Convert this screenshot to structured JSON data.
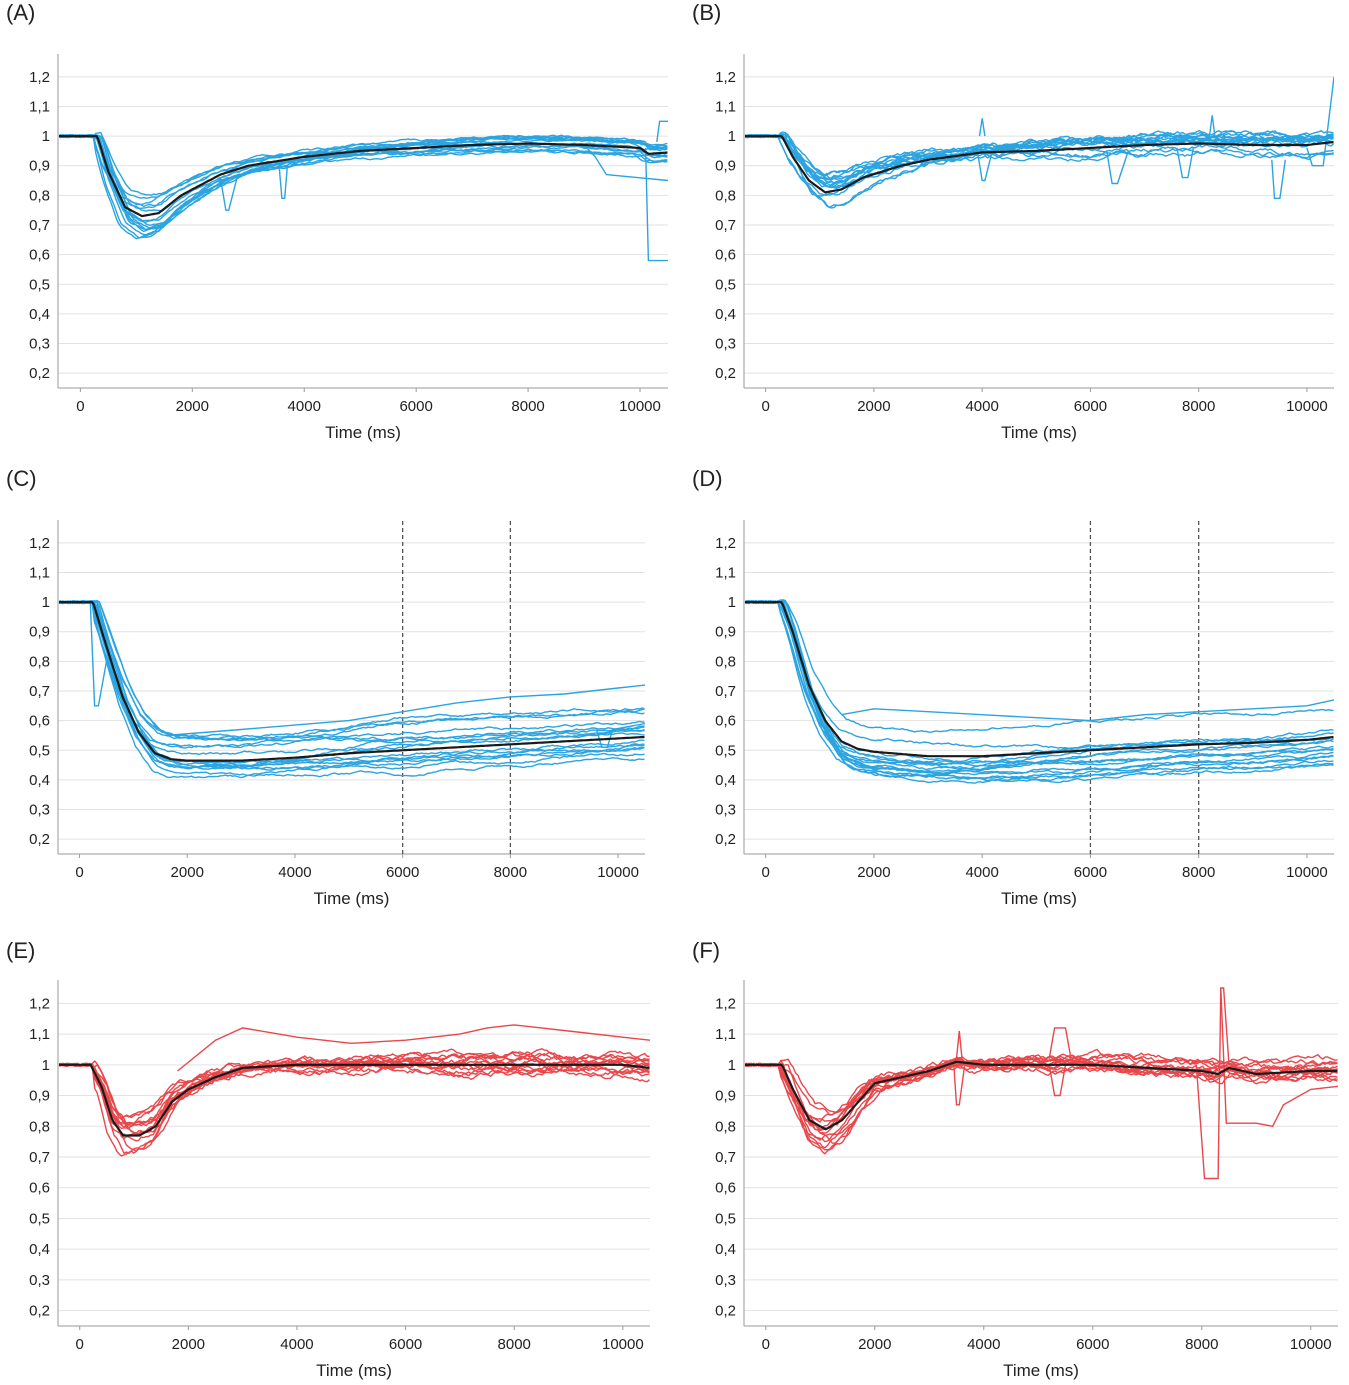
{
  "colors": {
    "blue": "#2ba4e0",
    "red": "#e8474b",
    "mean": "#1a1a1a",
    "grid": "#e2e2e2",
    "axis": "#9a9a9a",
    "dash": "#555555"
  },
  "panels": [
    {
      "letter": "(A)",
      "xlabel": "Time (ms)",
      "color": "blue",
      "guides": []
    },
    {
      "letter": "(B)",
      "xlabel": "Time (ms)",
      "color": "blue",
      "guides": []
    },
    {
      "letter": "(C)",
      "xlabel": "Time (ms)",
      "color": "blue",
      "guides": [
        6000,
        8000
      ]
    },
    {
      "letter": "(D)",
      "xlabel": "Time (ms)",
      "color": "blue",
      "guides": [
        6000,
        8000
      ]
    },
    {
      "letter": "(E)",
      "xlabel": "Time (ms)",
      "color": "red",
      "guides": []
    },
    {
      "letter": "(F)",
      "xlabel": "Time (ms)",
      "color": "red",
      "guides": []
    }
  ],
  "chart_data": [
    {
      "type": "line",
      "panel": "(A)",
      "xlabel": "Time (ms)",
      "ylabel": "",
      "xlim": [
        -400,
        10500
      ],
      "ylim": [
        0.15,
        1.25
      ],
      "xticks": [
        "0",
        "2000",
        "4000",
        "6000",
        "8000",
        "10000"
      ],
      "yticks": [
        "0,2",
        "0,3",
        "0,4",
        "0,5",
        "0,6",
        "0,7",
        "0,8",
        "0,9",
        "1",
        "1,1",
        "1,2"
      ],
      "guides": [],
      "mean": {
        "x": [
          -400,
          300,
          500,
          800,
          1100,
          1400,
          1800,
          2500,
          3000,
          4000,
          5000,
          6000,
          7000,
          8000,
          9000,
          10000,
          10150,
          10500
        ],
        "y": [
          1.0,
          1.0,
          0.88,
          0.76,
          0.73,
          0.74,
          0.8,
          0.87,
          0.9,
          0.93,
          0.95,
          0.96,
          0.97,
          0.975,
          0.97,
          0.96,
          0.94,
          0.945
        ]
      },
      "trace_count": 16,
      "trace_min_range": [
        0.6,
        0.83
      ],
      "outliers": [
        {
          "x": [
            2500,
            2600,
            2650,
            2800
          ],
          "y": [
            0.86,
            0.75,
            0.75,
            0.86
          ]
        },
        {
          "x": [
            3550,
            3600,
            3650,
            3700
          ],
          "y": [
            0.9,
            0.79,
            0.79,
            0.9
          ]
        },
        {
          "x": [
            10100,
            10150,
            10200,
            10500
          ],
          "y": [
            0.96,
            0.58,
            0.58,
            0.58
          ]
        },
        {
          "x": [
            9000,
            9200,
            9400,
            10500
          ],
          "y": [
            0.97,
            0.93,
            0.87,
            0.85
          ]
        },
        {
          "x": [
            10300,
            10350,
            10500
          ],
          "y": [
            0.98,
            1.05,
            1.05
          ]
        }
      ]
    },
    {
      "type": "line",
      "panel": "(B)",
      "xlabel": "Time (ms)",
      "ylabel": "",
      "xlim": [
        -400,
        10500
      ],
      "ylim": [
        0.15,
        1.25
      ],
      "xticks": [
        "0",
        "2000",
        "4000",
        "6000",
        "8000",
        "10000"
      ],
      "yticks": [
        "0,2",
        "0,3",
        "0,4",
        "0,5",
        "0,6",
        "0,7",
        "0,8",
        "0,9",
        "1",
        "1,1",
        "1,2"
      ],
      "guides": [],
      "mean": {
        "x": [
          -400,
          300,
          500,
          800,
          1100,
          1400,
          1800,
          2500,
          3000,
          4000,
          5000,
          6000,
          7000,
          8000,
          9000,
          10000,
          10500
        ],
        "y": [
          1.0,
          1.0,
          0.93,
          0.85,
          0.81,
          0.82,
          0.86,
          0.9,
          0.92,
          0.945,
          0.95,
          0.96,
          0.97,
          0.975,
          0.97,
          0.97,
          0.98
        ]
      },
      "trace_count": 16,
      "trace_min_range": [
        0.7,
        0.93
      ],
      "outliers": [
        {
          "x": [
            3900,
            4000,
            4050,
            4200
          ],
          "y": [
            0.96,
            0.85,
            0.85,
            0.96
          ]
        },
        {
          "x": [
            6300,
            6400,
            6500,
            6700
          ],
          "y": [
            0.95,
            0.84,
            0.84,
            0.95
          ]
        },
        {
          "x": [
            7600,
            7700,
            7800,
            7900
          ],
          "y": [
            0.96,
            0.86,
            0.86,
            0.96
          ]
        },
        {
          "x": [
            9350,
            9400,
            9500,
            9600
          ],
          "y": [
            0.92,
            0.79,
            0.79,
            0.92
          ]
        },
        {
          "x": [
            10000,
            10100,
            10300,
            10500
          ],
          "y": [
            0.96,
            0.9,
            0.9,
            1.2
          ]
        },
        {
          "x": [
            3950,
            4000,
            4050
          ],
          "y": [
            1.0,
            1.06,
            1.0
          ]
        },
        {
          "x": [
            8200,
            8250,
            8300
          ],
          "y": [
            1.0,
            1.07,
            1.0
          ]
        }
      ]
    },
    {
      "type": "line",
      "panel": "(C)",
      "xlabel": "Time (ms)",
      "ylabel": "",
      "xlim": [
        -400,
        10500
      ],
      "ylim": [
        0.15,
        1.25
      ],
      "xticks": [
        "0",
        "2000",
        "4000",
        "6000",
        "8000",
        "10000"
      ],
      "yticks": [
        "0,2",
        "0,3",
        "0,4",
        "0,5",
        "0,6",
        "0,7",
        "0,8",
        "0,9",
        "1",
        "1,1",
        "1,2"
      ],
      "guides": [
        6000,
        8000
      ],
      "mean": {
        "x": [
          -400,
          250,
          500,
          800,
          1100,
          1400,
          1700,
          2000,
          3000,
          4000,
          5000,
          6000,
          7000,
          8000,
          9000,
          10000,
          10500
        ],
        "y": [
          1.0,
          1.0,
          0.85,
          0.68,
          0.56,
          0.49,
          0.47,
          0.465,
          0.465,
          0.475,
          0.49,
          0.5,
          0.51,
          0.52,
          0.53,
          0.54,
          0.545
        ]
      },
      "trace_count": 16,
      "trace_floor_range": [
        0.41,
        0.58
      ],
      "outliers": [
        {
          "x": [
            200,
            280,
            350,
            500
          ],
          "y": [
            1.0,
            0.65,
            0.65,
            0.8
          ]
        },
        {
          "x": [
            1600,
            3000,
            5000,
            7000,
            8000,
            9000,
            10000,
            10500
          ],
          "y": [
            0.55,
            0.57,
            0.6,
            0.66,
            0.68,
            0.69,
            0.71,
            0.72
          ]
        },
        {
          "x": [
            9600,
            9700,
            9800,
            9900,
            10500
          ],
          "y": [
            0.57,
            0.51,
            0.51,
            0.57,
            0.59
          ]
        }
      ]
    },
    {
      "type": "line",
      "panel": "(D)",
      "xlabel": "Time (ms)",
      "ylabel": "",
      "xlim": [
        -400,
        10500
      ],
      "ylim": [
        0.15,
        1.25
      ],
      "xticks": [
        "0",
        "2000",
        "4000",
        "6000",
        "8000",
        "10000"
      ],
      "yticks": [
        "0,2",
        "0,3",
        "0,4",
        "0,5",
        "0,6",
        "0,7",
        "0,8",
        "0,9",
        "1",
        "1,1",
        "1,2"
      ],
      "guides": [
        6000,
        8000
      ],
      "mean": {
        "x": [
          -400,
          300,
          500,
          800,
          1100,
          1400,
          1700,
          2000,
          3000,
          4000,
          5000,
          6000,
          7000,
          8000,
          9000,
          10000,
          10500
        ],
        "y": [
          1.0,
          1.0,
          0.9,
          0.72,
          0.6,
          0.53,
          0.505,
          0.495,
          0.48,
          0.48,
          0.49,
          0.5,
          0.51,
          0.52,
          0.525,
          0.535,
          0.545
        ]
      },
      "trace_count": 16,
      "trace_floor_range": [
        0.37,
        0.64
      ],
      "outliers": [
        {
          "x": [
            1400,
            2000,
            3000,
            4000,
            5000,
            6000,
            7000,
            8000,
            9000,
            10000,
            10500
          ],
          "y": [
            0.62,
            0.64,
            0.63,
            0.62,
            0.61,
            0.6,
            0.62,
            0.63,
            0.64,
            0.65,
            0.67
          ]
        }
      ]
    },
    {
      "type": "line",
      "panel": "(E)",
      "xlabel": "Time (ms)",
      "ylabel": "",
      "xlim": [
        -400,
        10500
      ],
      "ylim": [
        0.15,
        1.25
      ],
      "xticks": [
        "0",
        "2000",
        "4000",
        "6000",
        "8000",
        "10000"
      ],
      "yticks": [
        "0,2",
        "0,3",
        "0,4",
        "0,5",
        "0,6",
        "0,7",
        "0,8",
        "0,9",
        "1",
        "1,1",
        "1,2"
      ],
      "guides": [],
      "mean": {
        "x": [
          -400,
          200,
          400,
          600,
          800,
          1100,
          1400,
          1700,
          2000,
          2500,
          3000,
          4000,
          5000,
          6000,
          7000,
          8000,
          9000,
          10000,
          10500
        ],
        "y": [
          1.0,
          1.0,
          0.93,
          0.82,
          0.77,
          0.77,
          0.8,
          0.88,
          0.92,
          0.96,
          0.99,
          1.0,
          1.0,
          1.0,
          1.0,
          1.0,
          1.0,
          1.0,
          0.99
        ]
      },
      "trace_count": 14,
      "trace_min_range": [
        0.69,
        0.85
      ],
      "outliers": [
        {
          "x": [
            1800,
            2500,
            3000,
            4000,
            5000,
            6000,
            7000,
            7500,
            8000,
            8500,
            9000,
            10000,
            10500
          ],
          "y": [
            0.98,
            1.08,
            1.12,
            1.09,
            1.07,
            1.08,
            1.1,
            1.12,
            1.13,
            1.12,
            1.11,
            1.09,
            1.08
          ]
        }
      ]
    },
    {
      "type": "line",
      "panel": "(F)",
      "xlabel": "Time (ms)",
      "ylabel": "",
      "xlim": [
        -400,
        10500
      ],
      "ylim": [
        0.15,
        1.25
      ],
      "xticks": [
        "0",
        "2000",
        "4000",
        "6000",
        "8000",
        "10000"
      ],
      "yticks": [
        "0,2",
        "0,3",
        "0,4",
        "0,5",
        "0,6",
        "0,7",
        "0,8",
        "0,9",
        "1",
        "1,1",
        "1,2"
      ],
      "guides": [],
      "mean": {
        "x": [
          -400,
          300,
          500,
          800,
          1100,
          1400,
          1700,
          2000,
          2500,
          3000,
          3500,
          4000,
          5000,
          6000,
          7000,
          8000,
          8300,
          8500,
          9000,
          10000,
          10500
        ],
        "y": [
          1.0,
          1.0,
          0.92,
          0.82,
          0.79,
          0.82,
          0.88,
          0.94,
          0.96,
          0.98,
          1.01,
          1.0,
          1.0,
          1.0,
          0.99,
          0.98,
          0.97,
          0.99,
          0.97,
          0.98,
          0.98
        ]
      },
      "trace_count": 14,
      "trace_min_range": [
        0.65,
        0.87
      ],
      "outliers": [
        {
          "x": [
            7900,
            8050,
            8150,
            8300,
            8350,
            8400,
            8500,
            8600,
            8700
          ],
          "y": [
            1.0,
            0.63,
            0.63,
            0.63,
            1.25,
            1.25,
            1.0,
            1.0,
            1.0
          ]
        },
        {
          "x": [
            8350,
            8450,
            8500,
            9000,
            9300,
            9500,
            10000,
            10500
          ],
          "y": [
            1.25,
            0.81,
            0.81,
            0.81,
            0.8,
            0.87,
            0.92,
            0.93
          ]
        },
        {
          "x": [
            3450,
            3500,
            3550,
            3650
          ],
          "y": [
            1.0,
            0.87,
            0.87,
            1.0
          ]
        },
        {
          "x": [
            5200,
            5300,
            5400,
            5500
          ],
          "y": [
            1.0,
            0.9,
            0.9,
            1.0
          ]
        },
        {
          "x": [
            3500,
            3550,
            3600
          ],
          "y": [
            1.02,
            1.11,
            1.02
          ]
        },
        {
          "x": [
            5200,
            5300,
            5500,
            5600
          ],
          "y": [
            1.02,
            1.12,
            1.12,
            1.02
          ]
        }
      ]
    }
  ]
}
